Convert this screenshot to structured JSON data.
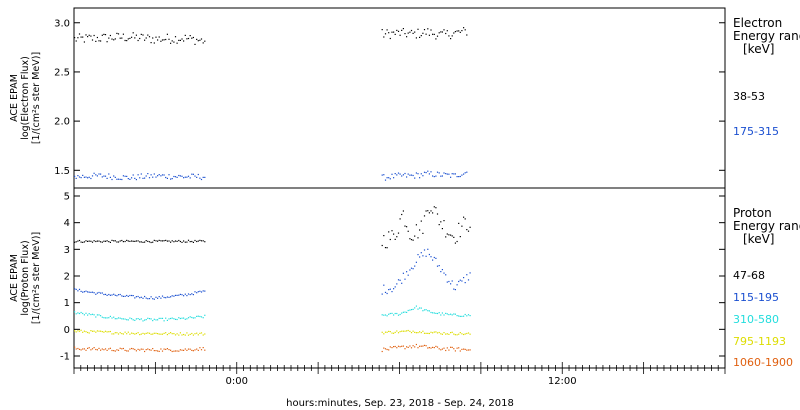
{
  "xlabel": "hours:minutes, Sep. 23, 2018 - Sep. 24, 2018",
  "x_axis": {
    "range_hours": [
      -6,
      18
    ],
    "ticks": [
      {
        "value": 0,
        "label": "0:00"
      },
      {
        "value": 12,
        "label": "12:00"
      }
    ],
    "minor_step_hours": 0.25,
    "major_step_hours": 3
  },
  "data_gap_hours": [
    -1.2,
    5.3
  ],
  "colors": {
    "black": "#000000",
    "blue": "#1a4fd0",
    "cyan": "#22dddd",
    "yellow": "#dddd00",
    "orange": "#e06010"
  },
  "panels": [
    {
      "name": "electron",
      "ylabel_lines": [
        "ACE EPAM",
        "log(Electron Flux)",
        "[1/(cm²s ster MeV)]"
      ],
      "ylim": [
        1.32,
        3.15
      ],
      "yticks": [
        "1.5",
        "2.0",
        "2.5",
        "3.0"
      ],
      "ytick_values": [
        1.5,
        2.0,
        2.5,
        3.0
      ],
      "legend_title": [
        "Electron",
        "Energy ranges"
      ],
      "legend_unit": "[keV]",
      "legend": [
        {
          "label": "38-53",
          "color": "#000000"
        },
        {
          "label": "175-315",
          "color": "#1a4fd0"
        }
      ]
    },
    {
      "name": "proton",
      "ylabel_lines": [
        "ACE EPAM",
        "log(Proton Flux)",
        "[1/(cm²s ster MeV)]"
      ],
      "ylim": [
        -1.45,
        5.3
      ],
      "yticks": [
        "-1",
        "0",
        "1",
        "2",
        "3",
        "4",
        "5"
      ],
      "ytick_values": [
        -1,
        0,
        1,
        2,
        3,
        4,
        5
      ],
      "legend_title": [
        "Proton",
        "Energy ranges"
      ],
      "legend_unit": "[keV]",
      "legend": [
        {
          "label": "47-68",
          "color": "#000000"
        },
        {
          "label": "115-195",
          "color": "#1a4fd0"
        },
        {
          "label": "310-580",
          "color": "#22dddd"
        },
        {
          "label": "795-1193",
          "color": "#dddd00"
        },
        {
          "label": "1060-1900",
          "color": "#e06010"
        }
      ]
    }
  ],
  "chart_data": [
    {
      "type": "scatter",
      "title": "",
      "xlabel": "hours:minutes, Sep. 23, 2018 - Sep. 24, 2018",
      "ylabel": "ACE EPAM log(Electron Flux) [1/(cm²s ster MeV)]",
      "xlim": [
        -6,
        18
      ],
      "ylim": [
        1.32,
        3.15
      ],
      "series": [
        {
          "name": "38-53",
          "color": "#000000",
          "x": [
            -6.0,
            -5.0,
            -4.0,
            -3.0,
            -2.0,
            -1.2,
            5.3,
            6.0,
            6.5,
            7.0,
            7.5,
            8.0,
            8.5
          ],
          "y": [
            2.84,
            2.85,
            2.86,
            2.84,
            2.85,
            2.82,
            2.89,
            2.9,
            2.89,
            2.91,
            2.88,
            2.9,
            2.92
          ]
        },
        {
          "name": "175-315",
          "color": "#1a4fd0",
          "x": [
            -6.0,
            -5.0,
            -4.0,
            -3.0,
            -2.0,
            -1.2,
            5.3,
            6.0,
            6.5,
            7.0,
            7.5,
            8.0,
            8.5
          ],
          "y": [
            1.44,
            1.45,
            1.43,
            1.45,
            1.44,
            1.44,
            1.43,
            1.45,
            1.45,
            1.47,
            1.46,
            1.45,
            1.49
          ]
        }
      ]
    },
    {
      "type": "scatter",
      "title": "",
      "xlabel": "hours:minutes, Sep. 23, 2018 - Sep. 24, 2018",
      "ylabel": "ACE EPAM log(Proton Flux) [1/(cm²s ster MeV)]",
      "xlim": [
        -6,
        18
      ],
      "ylim": [
        -1.45,
        5.3
      ],
      "series": [
        {
          "name": "47-68",
          "color": "#000000",
          "x": [
            -6.0,
            -4.0,
            -2.0,
            -1.2,
            5.3,
            5.8,
            6.1,
            6.4,
            6.8,
            7.1,
            7.4,
            7.7,
            8.0,
            8.3,
            8.6
          ],
          "y": [
            3.32,
            3.32,
            3.32,
            3.32,
            3.35,
            3.5,
            4.4,
            3.6,
            3.8,
            4.8,
            4.2,
            3.8,
            3.5,
            3.9,
            4.05
          ]
        },
        {
          "name": "115-195",
          "color": "#1a4fd0",
          "x": [
            -6.0,
            -5.0,
            -4.0,
            -3.0,
            -2.0,
            -1.2,
            5.3,
            5.8,
            6.2,
            6.6,
            7.0,
            7.5,
            8.0,
            8.3,
            8.6
          ],
          "y": [
            1.5,
            1.35,
            1.25,
            1.2,
            1.3,
            1.45,
            1.5,
            1.6,
            2.1,
            2.6,
            2.95,
            2.3,
            1.6,
            1.8,
            2.1
          ]
        },
        {
          "name": "310-580",
          "color": "#22dddd",
          "x": [
            -6.0,
            -5.0,
            -4.0,
            -3.0,
            -2.0,
            -1.2,
            5.3,
            6.0,
            6.6,
            7.0,
            7.5,
            8.0,
            8.6
          ],
          "y": [
            0.65,
            0.5,
            0.4,
            0.38,
            0.42,
            0.5,
            0.55,
            0.6,
            0.85,
            0.7,
            0.6,
            0.55,
            0.55
          ]
        },
        {
          "name": "795-1193",
          "color": "#dddd00",
          "x": [
            -6.0,
            -4.0,
            -2.0,
            -1.2,
            5.3,
            6.5,
            7.5,
            8.6
          ],
          "y": [
            -0.05,
            -0.12,
            -0.15,
            -0.15,
            -0.1,
            -0.05,
            -0.12,
            -0.15
          ]
        },
        {
          "name": "1060-1900",
          "color": "#e06010",
          "x": [
            -6.0,
            -4.0,
            -2.0,
            -1.2,
            5.3,
            6.5,
            7.5,
            8.6
          ],
          "y": [
            -0.7,
            -0.75,
            -0.75,
            -0.7,
            -0.75,
            -0.6,
            -0.7,
            -0.75
          ]
        }
      ]
    }
  ]
}
